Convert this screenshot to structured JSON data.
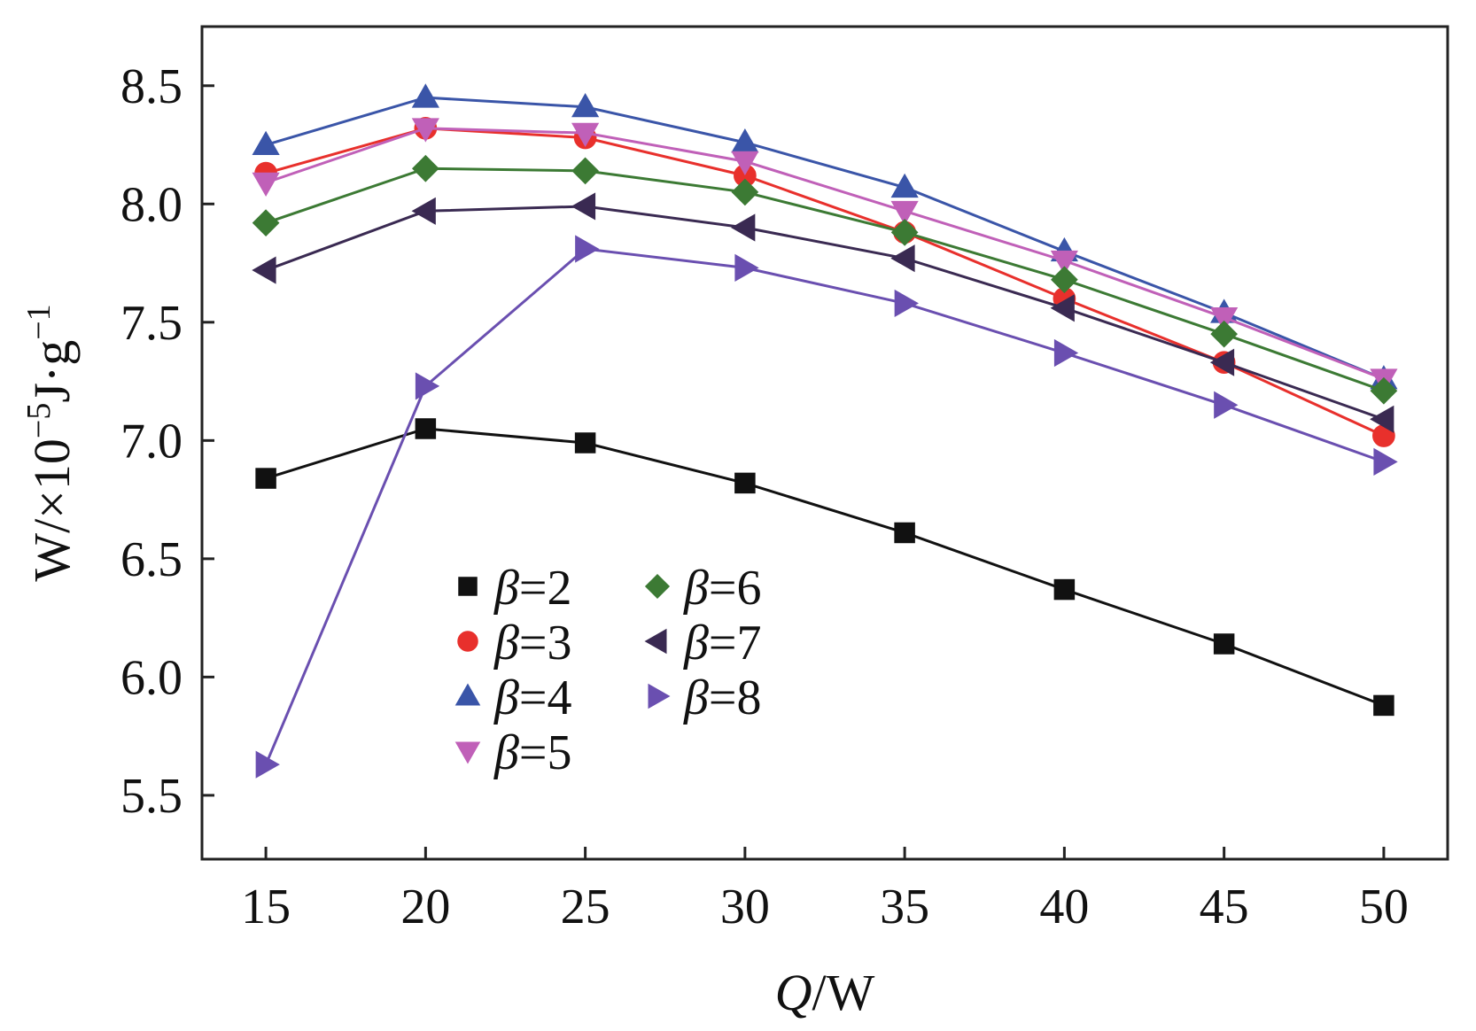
{
  "chart_data": {
    "type": "line",
    "title": "",
    "xlabel": "Q/W",
    "xlabel_italic": "Q",
    "xlabel_rest": "/W",
    "ylabel": "W/×10⁻⁵J·g⁻¹",
    "ylabel_parts": [
      "W/×10",
      "−5",
      "J·g",
      "−1"
    ],
    "x": [
      15,
      20,
      25,
      30,
      35,
      40,
      45,
      50
    ],
    "xlim": [
      13,
      52
    ],
    "ylim": [
      5.23,
      8.75
    ],
    "xticks": [
      "15",
      "20",
      "25",
      "30",
      "35",
      "40",
      "45",
      "50"
    ],
    "yticks": [
      "5.5",
      "6.0",
      "6.5",
      "7.0",
      "7.5",
      "8.0",
      "8.5"
    ],
    "ytick_values": [
      5.5,
      6.0,
      6.5,
      7.0,
      7.5,
      8.0,
      8.5
    ],
    "grid": false,
    "legend_position": "bottom-left",
    "series": [
      {
        "name": "β=2",
        "greek": "β",
        "eq": "=2",
        "marker": "square",
        "color": "#111111",
        "values": [
          6.84,
          7.05,
          6.99,
          6.82,
          6.61,
          6.37,
          6.14,
          5.88
        ]
      },
      {
        "name": "β=3",
        "greek": "β",
        "eq": "=3",
        "marker": "circle",
        "color": "#e8302c",
        "values": [
          8.13,
          8.32,
          8.28,
          8.12,
          7.88,
          7.6,
          7.33,
          7.02
        ]
      },
      {
        "name": "β=4",
        "greek": "β",
        "eq": "=4",
        "marker": "triangle-up",
        "color": "#3a55a8",
        "values": [
          8.25,
          8.45,
          8.41,
          8.26,
          8.07,
          7.8,
          7.54,
          7.26
        ]
      },
      {
        "name": "β=5",
        "greek": "β",
        "eq": "=5",
        "marker": "triangle-down",
        "color": "#c060b8",
        "values": [
          8.09,
          8.32,
          8.3,
          8.18,
          7.97,
          7.76,
          7.52,
          7.26
        ]
      },
      {
        "name": "β=6",
        "greek": "β",
        "eq": "=6",
        "marker": "diamond",
        "color": "#3c7a34",
        "values": [
          7.92,
          8.15,
          8.14,
          8.05,
          7.88,
          7.68,
          7.45,
          7.21
        ]
      },
      {
        "name": "β=7",
        "greek": "β",
        "eq": "=7",
        "marker": "triangle-left",
        "color": "#3a2a52",
        "values": [
          7.72,
          7.97,
          7.99,
          7.9,
          7.77,
          7.56,
          7.33,
          7.09
        ]
      },
      {
        "name": "β=8",
        "greek": "β",
        "eq": "=8",
        "marker": "triangle-right",
        "color": "#6a4fb0",
        "values": [
          5.63,
          7.23,
          7.81,
          7.73,
          7.58,
          7.37,
          7.15,
          6.91
        ]
      }
    ]
  }
}
